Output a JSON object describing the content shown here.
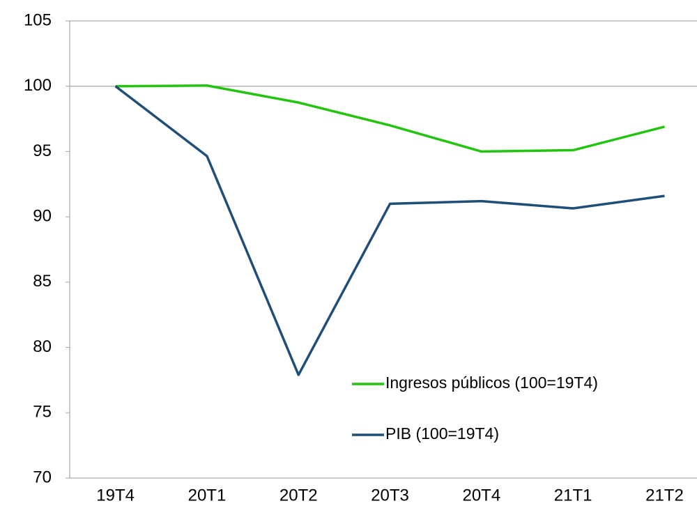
{
  "chart_data": {
    "type": "line",
    "categories": [
      "19T4",
      "20T1",
      "20T2",
      "20T3",
      "20T4",
      "21T1",
      "21T2"
    ],
    "series": [
      {
        "name": "Ingresos públicos (100=19T4)",
        "color": "#22c40f",
        "values": [
          100,
          100.05,
          98.75,
          97.0,
          95.0,
          95.1,
          96.9
        ]
      },
      {
        "name": "PIB (100=19T4)",
        "color": "#1f4e79",
        "values": [
          100,
          94.65,
          77.9,
          91.0,
          91.2,
          90.65,
          91.6
        ]
      }
    ],
    "ylim": [
      70,
      105
    ],
    "yticks": [
      70,
      75,
      80,
      85,
      90,
      95,
      100,
      105
    ],
    "hline": 100
  }
}
